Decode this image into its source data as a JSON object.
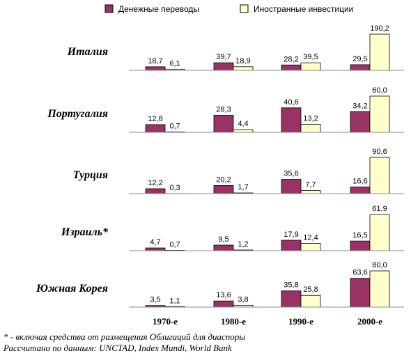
{
  "chart_data": {
    "type": "bar",
    "series": [
      {
        "name": "Денежные переводы",
        "color": "#993366"
      },
      {
        "name": "Иностранные инвестиции",
        "color": "#ffffcc"
      }
    ],
    "categories": [
      "1970-е",
      "1980-е",
      "1990-е",
      "2000-е"
    ],
    "panels": [
      {
        "name": "Италия",
        "series": [
          {
            "values": [
              18.7,
              39.7,
              28.2,
              29.5
            ],
            "value_labels": [
              "18,7",
              "39,7",
              "28,2",
              "29,5"
            ]
          },
          {
            "values": [
              6.1,
              18.9,
              39.5,
              190.2
            ],
            "value_labels": [
              "6,1",
              "18,9",
              "39,5",
              "190,2"
            ]
          }
        ]
      },
      {
        "name": "Португалия",
        "series": [
          {
            "values": [
              12.8,
              28.3,
              40.6,
              34.2
            ],
            "value_labels": [
              "12,8",
              "28,3",
              "40,6",
              "34,2"
            ]
          },
          {
            "values": [
              0.7,
              4.4,
              13.2,
              60.0
            ],
            "value_labels": [
              "0,7",
              "4,4",
              "13,2",
              "60,0"
            ]
          }
        ]
      },
      {
        "name": "Турция",
        "series": [
          {
            "values": [
              12.2,
              20.2,
              35.6,
              16.6
            ],
            "value_labels": [
              "12,2",
              "20,2",
              "35,6",
              "16,6"
            ]
          },
          {
            "values": [
              0.3,
              1.7,
              7.7,
              90.6
            ],
            "value_labels": [
              "0,3",
              "1,7",
              "7,7",
              "90,6"
            ]
          }
        ]
      },
      {
        "name": "Израиль*",
        "series": [
          {
            "values": [
              4.7,
              9.5,
              17.9,
              16.5
            ],
            "value_labels": [
              "4,7",
              "9,5",
              "17,9",
              "16,5"
            ]
          },
          {
            "values": [
              0.7,
              1.2,
              12.4,
              61.9
            ],
            "value_labels": [
              "0,7",
              "1,2",
              "12,4",
              "61,9"
            ]
          }
        ]
      },
      {
        "name": "Южная Корея",
        "series": [
          {
            "values": [
              3.5,
              13.6,
              35.8,
              63.6
            ],
            "value_labels": [
              "3,5",
              "13,6",
              "35,8",
              "63,6"
            ]
          },
          {
            "values": [
              1.1,
              3.8,
              25.8,
              80.0
            ],
            "value_labels": [
              "1,1",
              "3,8",
              "25,8",
              "80,0"
            ]
          }
        ]
      }
    ],
    "notes": [
      "* - включая средства от размещения Облигаций для диаспоры",
      "Рассчитано по данным: UNCTAD, Index Mundi, World Bank"
    ]
  }
}
